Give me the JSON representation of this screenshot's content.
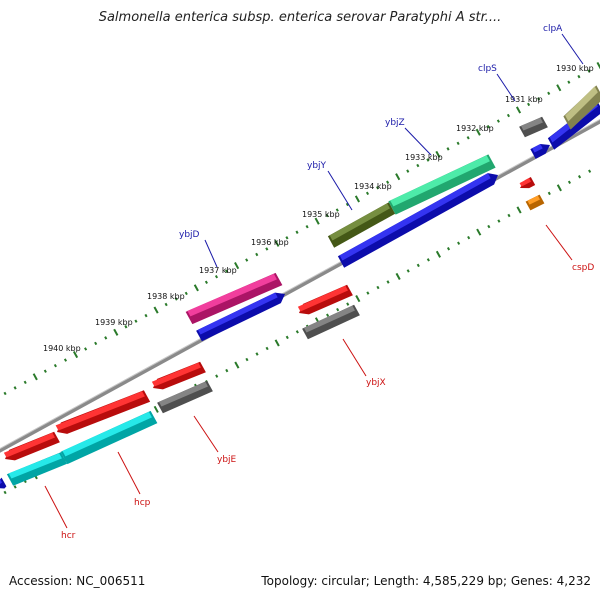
{
  "title": "Salmonella enterica subsp. enterica serovar Paratyphi A str....",
  "footer": {
    "accession": "Accession: NC_006511",
    "stats": "Topology: circular; Length: 4,585,229 bp; Genes: 4,232"
  },
  "colors": {
    "plus_label": "#1a1aa8",
    "minus_label": "#cc1111",
    "backbone": "#8a8a8a",
    "tick": "#2a7a2a",
    "cds": "#1010ee"
  },
  "scale_labels": [
    "1930 kbp",
    "1931 kbp",
    "1932 kbp",
    "1933 kbp",
    "1934 kbp",
    "1935 kbp",
    "1936 kbp",
    "1937 kbp",
    "1938 kbp",
    "1939 kbp",
    "1940 kbp"
  ],
  "genes_forward": [
    {
      "name": "clpA",
      "color": "#b4b46e"
    },
    {
      "name": "clpS",
      "color": "#6e6e6e"
    },
    {
      "name": "ybjZ",
      "color": "#2ee89a"
    },
    {
      "name": "ybjY",
      "color": "#5e7a1e"
    },
    {
      "name": "ybjD",
      "color": "#ee1c8c"
    }
  ],
  "genes_reverse": [
    {
      "name": "cspD",
      "color": "#ff8c00"
    },
    {
      "name": "ybjX",
      "color": "#6e6e6e"
    },
    {
      "name": "ybjE",
      "color": "#6e6e6e"
    },
    {
      "name": "hcp",
      "color": "#00e5e5"
    },
    {
      "name": "hcr",
      "color": "#00e5e5"
    }
  ]
}
